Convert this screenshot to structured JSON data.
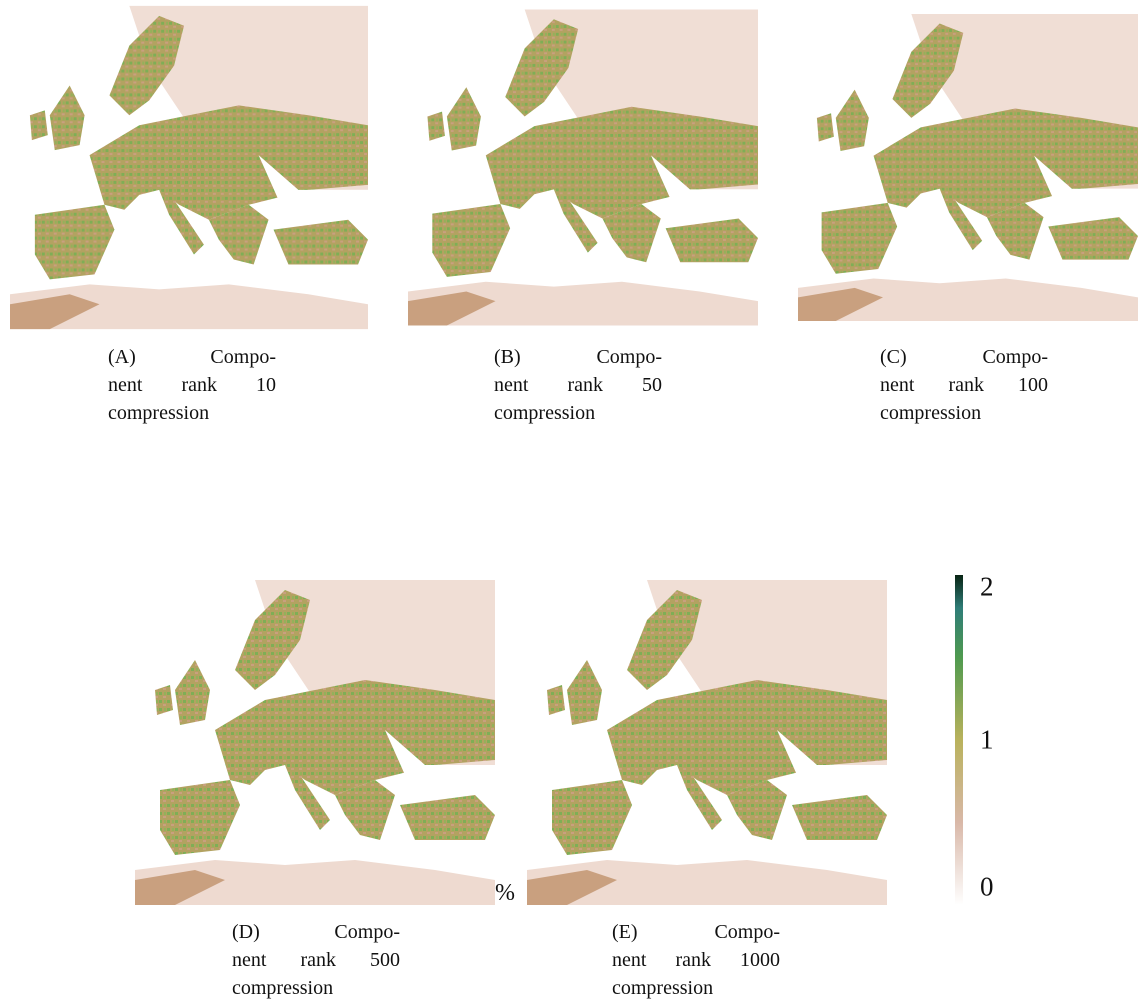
{
  "panels": [
    {
      "caption": [
        "(A) Compo-",
        "nent rank 10",
        "compression"
      ]
    },
    {
      "caption": [
        "(B) Compo-",
        "nent rank 50",
        "compression"
      ]
    },
    {
      "caption": [
        "(C) Compo-",
        "nent rank 100",
        "compression"
      ]
    },
    {
      "caption": [
        "(D) Compo-",
        "nent rank 500",
        "compression"
      ]
    },
    {
      "caption": [
        "(E) Compo-",
        "nent rank 1000",
        "compression"
      ]
    }
  ],
  "colorbar": {
    "lim": [
      0,
      2
    ],
    "ticks": [
      0,
      1,
      2
    ]
  },
  "stray_text": "%"
}
